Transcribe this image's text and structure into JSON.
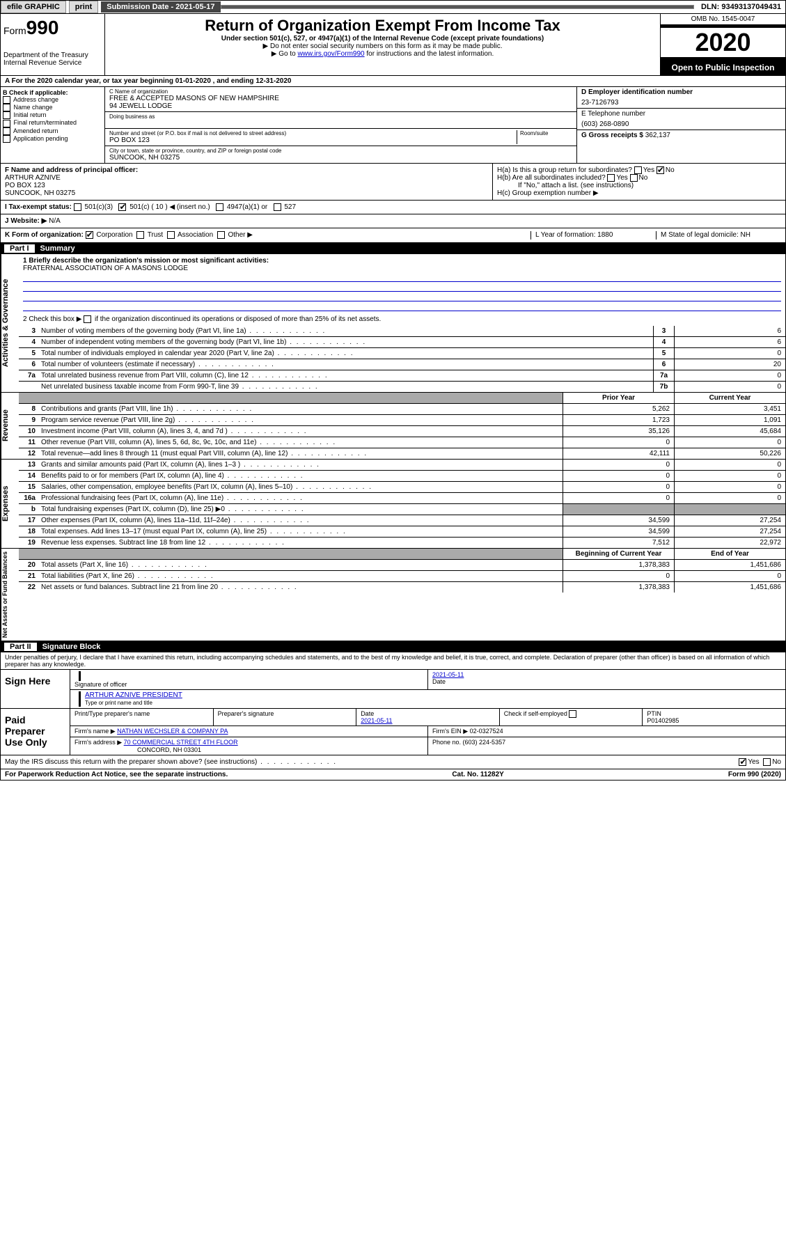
{
  "topbar": {
    "efile": "efile GRAPHIC",
    "print": "print",
    "sub_label": "Submission Date - 2021-05-17",
    "dln": "DLN: 93493137049431"
  },
  "header": {
    "form_word": "Form",
    "form_num": "990",
    "title": "Return of Organization Exempt From Income Tax",
    "sub1": "Under section 501(c), 527, or 4947(a)(1) of the Internal Revenue Code (except private foundations)",
    "sub2": "▶ Do not enter social security numbers on this form as it may be made public.",
    "sub3_pre": "▶ Go to ",
    "sub3_link": "www.irs.gov/Form990",
    "sub3_post": " for instructions and the latest information.",
    "dept": "Department of the Treasury\nInternal Revenue Service",
    "omb": "OMB No. 1545-0047",
    "year": "2020",
    "otp": "Open to Public Inspection"
  },
  "row_a": "A For the 2020 calendar year, or tax year beginning 01-01-2020    , and ending 12-31-2020",
  "col_b": {
    "hdr": "B Check if applicable:",
    "items": [
      "Address change",
      "Name change",
      "Initial return",
      "Final return/terminated",
      "Amended return",
      "Application pending"
    ]
  },
  "col_c": {
    "name_lbl": "C Name of organization",
    "name1": "FREE & ACCEPTED MASONS OF NEW HAMPSHIRE",
    "name2": "94 JEWELL LODGE",
    "dba": "Doing business as",
    "addr_lbl": "Number and street (or P.O. box if mail is not delivered to street address)",
    "room": "Room/suite",
    "addr": "PO BOX 123",
    "city_lbl": "City or town, state or province, country, and ZIP or foreign postal code",
    "city": "SUNCOOK, NH  03275"
  },
  "col_de": {
    "d_lbl": "D Employer identification number",
    "d_val": "23-7126793",
    "e_lbl": "E Telephone number",
    "e_val": "(603) 268-0890",
    "g_lbl": "G Gross receipts $ ",
    "g_val": "362,137"
  },
  "row_f": {
    "f_lbl": "F  Name and address of principal officer:",
    "f_name": "ARTHUR AZNIVE",
    "f_addr1": "PO BOX 123",
    "f_addr2": "SUNCOOK, NH  03275",
    "ha": "H(a)  Is this a group return for subordinates?",
    "hb": "H(b)  Are all subordinates included?",
    "hb_note": "If \"No,\" attach a list. (see instructions)",
    "hc": "H(c)  Group exemption number ▶",
    "yes": "Yes",
    "no": "No"
  },
  "row_i": {
    "lbl": "I  Tax-exempt status:",
    "o1": "501(c)(3)",
    "o2": "501(c) ( 10 ) ◀ (insert no.)",
    "o3": "4947(a)(1) or",
    "o4": "527"
  },
  "row_j": {
    "lbl": "J  Website: ▶",
    "val": "  N/A"
  },
  "row_k": {
    "lbl": "K Form of organization:",
    "corp": "Corporation",
    "trust": "Trust",
    "assoc": "Association",
    "other": "Other ▶",
    "l": "L Year of formation: 1880",
    "m": "M State of legal domicile: NH"
  },
  "part1": {
    "num": "Part I",
    "title": "Summary"
  },
  "mission": {
    "q1": "1  Briefly describe the organization's mission or most significant activities:",
    "val": "FRATERNAL ASSOCIATION OF A MASONS LODGE",
    "q2_pre": "2   Check this box ▶ ",
    "q2_post": "  if the organization discontinued its operations or disposed of more than 25% of its net assets."
  },
  "gov_rows": [
    {
      "n": "3",
      "t": "Number of voting members of the governing body (Part VI, line 1a)",
      "b": "3",
      "v": "6"
    },
    {
      "n": "4",
      "t": "Number of independent voting members of the governing body (Part VI, line 1b)",
      "b": "4",
      "v": "6"
    },
    {
      "n": "5",
      "t": "Total number of individuals employed in calendar year 2020 (Part V, line 2a)",
      "b": "5",
      "v": "0"
    },
    {
      "n": "6",
      "t": "Total number of volunteers (estimate if necessary)",
      "b": "6",
      "v": "20"
    },
    {
      "n": "7a",
      "t": "Total unrelated business revenue from Part VIII, column (C), line 12",
      "b": "7a",
      "v": "0"
    },
    {
      "n": "",
      "t": "Net unrelated business taxable income from Form 990-T, line 39",
      "b": "7b",
      "v": "0"
    }
  ],
  "rev_hdr": {
    "py": "Prior Year",
    "cy": "Current Year"
  },
  "rev_rows": [
    {
      "n": "8",
      "t": "Contributions and grants (Part VIII, line 1h)",
      "py": "5,262",
      "cy": "3,451"
    },
    {
      "n": "9",
      "t": "Program service revenue (Part VIII, line 2g)",
      "py": "1,723",
      "cy": "1,091"
    },
    {
      "n": "10",
      "t": "Investment income (Part VIII, column (A), lines 3, 4, and 7d )",
      "py": "35,126",
      "cy": "45,684"
    },
    {
      "n": "11",
      "t": "Other revenue (Part VIII, column (A), lines 5, 6d, 8c, 9c, 10c, and 11e)",
      "py": "0",
      "cy": "0"
    },
    {
      "n": "12",
      "t": "Total revenue—add lines 8 through 11 (must equal Part VIII, column (A), line 12)",
      "py": "42,111",
      "cy": "50,226"
    }
  ],
  "exp_rows": [
    {
      "n": "13",
      "t": "Grants and similar amounts paid (Part IX, column (A), lines 1–3 )",
      "py": "0",
      "cy": "0"
    },
    {
      "n": "14",
      "t": "Benefits paid to or for members (Part IX, column (A), line 4)",
      "py": "0",
      "cy": "0"
    },
    {
      "n": "15",
      "t": "Salaries, other compensation, employee benefits (Part IX, column (A), lines 5–10)",
      "py": "0",
      "cy": "0"
    },
    {
      "n": "16a",
      "t": "Professional fundraising fees (Part IX, column (A), line 11e)",
      "py": "0",
      "cy": "0"
    },
    {
      "n": "b",
      "t": "Total fundraising expenses (Part IX, column (D), line 25) ▶0",
      "py": "",
      "cy": ""
    },
    {
      "n": "17",
      "t": "Other expenses (Part IX, column (A), lines 11a–11d, 11f–24e)",
      "py": "34,599",
      "cy": "27,254"
    },
    {
      "n": "18",
      "t": "Total expenses. Add lines 13–17 (must equal Part IX, column (A), line 25)",
      "py": "34,599",
      "cy": "27,254"
    },
    {
      "n": "19",
      "t": "Revenue less expenses. Subtract line 18 from line 12",
      "py": "7,512",
      "cy": "22,972"
    }
  ],
  "na_hdr": {
    "py": "Beginning of Current Year",
    "cy": "End of Year"
  },
  "na_rows": [
    {
      "n": "20",
      "t": "Total assets (Part X, line 16)",
      "py": "1,378,383",
      "cy": "1,451,686"
    },
    {
      "n": "21",
      "t": "Total liabilities (Part X, line 26)",
      "py": "0",
      "cy": "0"
    },
    {
      "n": "22",
      "t": "Net assets or fund balances. Subtract line 21 from line 20",
      "py": "1,378,383",
      "cy": "1,451,686"
    }
  ],
  "part2": {
    "num": "Part II",
    "title": "Signature Block"
  },
  "perjury": "Under penalties of perjury, I declare that I have examined this return, including accompanying schedules and statements, and to the best of my knowledge and belief, it is true, correct, and complete. Declaration of preparer (other than officer) is based on all information of which preparer has any knowledge.",
  "sign": {
    "here": "Sign Here",
    "sig_lbl": "Signature of officer",
    "date": "2021-05-11",
    "date_lbl": "Date",
    "name": "ARTHUR AZNIVE  PRESIDENT",
    "name_lbl": "Type or print name and title"
  },
  "paid": {
    "lbl": "Paid Preparer Use Only",
    "h1": "Print/Type preparer's name",
    "h2": "Preparer's signature",
    "h3": "Date",
    "h3v": "2021-05-11",
    "h4": "Check        if self-employed",
    "h5": "PTIN",
    "h5v": "P01402985",
    "firm": "Firm's name      ▶ ",
    "firmv": "NATHAN WECHSLER & COMPANY PA",
    "ein": "Firm's EIN ▶ 02-0327524",
    "addr": "Firm's address ▶ ",
    "addrv1": "70 COMMERCIAL STREET 4TH FLOOR",
    "addrv2": "CONCORD, NH  03301",
    "phone": "Phone no. (603) 224-5357"
  },
  "discuss": "May the IRS discuss this return with the preparer shown above? (see instructions)",
  "footer": {
    "l": "For Paperwork Reduction Act Notice, see the separate instructions.",
    "m": "Cat. No. 11282Y",
    "r": "Form 990 (2020)"
  },
  "vtabs": {
    "gov": "Activities & Governance",
    "rev": "Revenue",
    "exp": "Expenses",
    "na": "Net Assets or Fund Balances"
  }
}
